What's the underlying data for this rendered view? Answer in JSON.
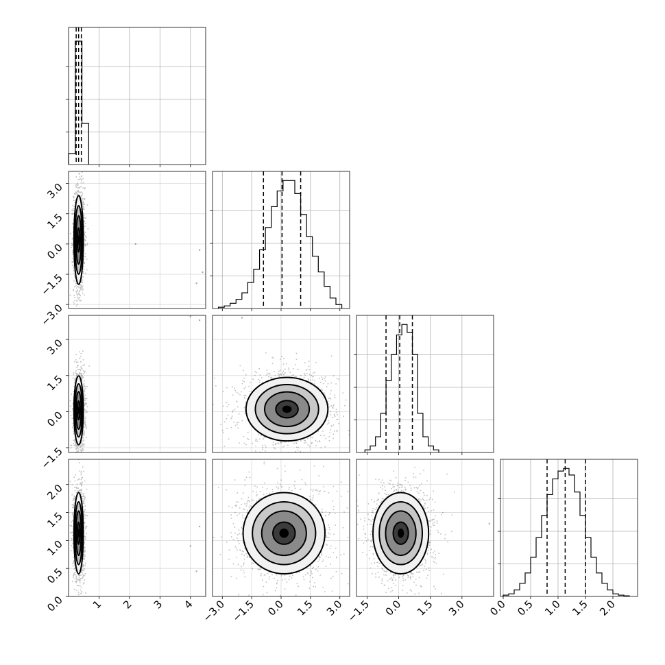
{
  "chart_data": {
    "type": "corner",
    "grid": true,
    "n_params": 4,
    "axis_tick_labels": [
      [
        "1",
        "2",
        "3",
        "4"
      ],
      [
        "−3.0",
        "−1.5",
        "0.0",
        "1.5",
        "3.0"
      ],
      [
        "−1.5",
        "0.0",
        "1.5",
        "3.0"
      ],
      [
        "0.0",
        "0.5",
        "1.0",
        "1.5",
        "2.0"
      ]
    ],
    "row_tick_labels": {
      "1": [
        "−3.0",
        "−1.5",
        "0.0",
        "1.5",
        "3.0"
      ],
      "2": [
        "−1.5",
        "0.0",
        "1.5",
        "3.0"
      ],
      "3": [
        "0.0",
        "0.5",
        "1.0",
        "1.5",
        "2.0"
      ]
    },
    "histograms": [
      {
        "param": 0,
        "xlim": [
          0.0,
          4.5
        ],
        "bin_edges": [
          0.0,
          0.22,
          0.44,
          0.66
        ],
        "counts": [
          0.08,
          0.9,
          0.3
        ],
        "ymax": 1.0,
        "quantiles": [
          0.25,
          0.33,
          0.42
        ]
      },
      {
        "param": 1,
        "xlim": [
          -3.5,
          3.5
        ],
        "bin_edges": [
          -3.2,
          -2.9,
          -2.6,
          -2.3,
          -2.0,
          -1.7,
          -1.4,
          -1.1,
          -0.8,
          -0.5,
          -0.2,
          0.1,
          0.4,
          0.7,
          1.0,
          1.3,
          1.6,
          1.9,
          2.2,
          2.5,
          2.8,
          3.1
        ],
        "counts": [
          0.01,
          0.02,
          0.04,
          0.07,
          0.12,
          0.2,
          0.3,
          0.45,
          0.62,
          0.78,
          0.9,
          0.98,
          0.98,
          0.88,
          0.72,
          0.55,
          0.4,
          0.28,
          0.17,
          0.08,
          0.03
        ],
        "ymax": 1.05,
        "quantiles": [
          -0.9,
          0.05,
          1.0
        ]
      },
      {
        "param": 2,
        "xlim": [
          -2.0,
          4.5
        ],
        "bin_edges": [
          -1.6,
          -1.35,
          -1.1,
          -0.85,
          -0.6,
          -0.35,
          -0.1,
          0.15,
          0.4,
          0.65,
          0.9,
          1.15,
          1.4,
          1.65,
          1.9
        ],
        "counts": [
          0.02,
          0.05,
          0.12,
          0.3,
          0.55,
          0.75,
          0.9,
          0.98,
          0.92,
          0.75,
          0.3,
          0.12,
          0.05,
          0.02
        ],
        "ymax": 1.05,
        "quantiles": [
          -0.6,
          0.05,
          0.65
        ]
      },
      {
        "param": 3,
        "xlim": [
          -0.05,
          2.45
        ],
        "bin_edges": [
          0.0,
          0.1,
          0.2,
          0.3,
          0.4,
          0.5,
          0.6,
          0.7,
          0.8,
          0.9,
          1.0,
          1.1,
          1.2,
          1.3,
          1.4,
          1.5,
          1.6,
          1.7,
          1.8,
          1.9,
          2.0,
          2.1,
          2.2,
          2.3
        ],
        "counts": [
          0.01,
          0.02,
          0.05,
          0.1,
          0.18,
          0.3,
          0.45,
          0.62,
          0.78,
          0.9,
          0.96,
          0.98,
          0.93,
          0.8,
          0.62,
          0.45,
          0.3,
          0.18,
          0.1,
          0.05,
          0.02,
          0.01,
          0.005
        ],
        "ymax": 1.05,
        "quantiles": [
          0.8,
          1.13,
          1.5
        ]
      }
    ],
    "pair_plots": [
      {
        "row": 1,
        "col": 0,
        "x_center": 0.33,
        "y_center": 0.2,
        "x_sigma": 0.07,
        "y_sigma": 1.0,
        "xlim": [
          0.0,
          4.5
        ],
        "ylim": [
          -3.2,
          3.6
        ],
        "outliers": [
          [
            4.3,
            -0.3
          ],
          [
            4.4,
            -1.4
          ],
          [
            4.2,
            -1.95
          ],
          [
            2.2,
            0.0
          ]
        ]
      },
      {
        "row": 2,
        "col": 0,
        "x_center": 0.33,
        "y_center": 0.05,
        "x_sigma": 0.07,
        "y_sigma": 0.65,
        "xlim": [
          0.0,
          4.5
        ],
        "ylim": [
          -1.7,
          4.0
        ],
        "outliers": [
          [
            4.3,
            3.8
          ],
          [
            4.0,
            3.95
          ]
        ]
      },
      {
        "row": 2,
        "col": 1,
        "x_center": 0.3,
        "y_center": 0.1,
        "x_sigma": 0.95,
        "y_sigma": 0.6,
        "xlim": [
          -3.5,
          3.5
        ],
        "ylim": [
          -1.7,
          4.0
        ],
        "outliers": [
          [
            -2.0,
            3.9
          ]
        ]
      },
      {
        "row": 3,
        "col": 0,
        "x_center": 0.33,
        "y_center": 1.13,
        "x_sigma": 0.07,
        "y_sigma": 0.33,
        "xlim": [
          0.0,
          4.5
        ],
        "ylim": [
          0.0,
          2.45
        ],
        "outliers": [
          [
            4.0,
            0.9
          ],
          [
            4.2,
            0.45
          ],
          [
            4.3,
            1.25
          ]
        ]
      },
      {
        "row": 3,
        "col": 1,
        "x_center": 0.15,
        "y_center": 1.13,
        "x_sigma": 0.95,
        "y_sigma": 0.33,
        "xlim": [
          -3.5,
          3.5
        ],
        "ylim": [
          0.0,
          2.45
        ],
        "outliers": []
      },
      {
        "row": 3,
        "col": 2,
        "x_center": 0.1,
        "y_center": 1.13,
        "x_sigma": 0.6,
        "y_sigma": 0.33,
        "xlim": [
          -2.0,
          4.5
        ],
        "ylim": [
          0.0,
          2.45
        ],
        "outliers": [
          [
            4.3,
            1.3
          ]
        ]
      }
    ]
  }
}
